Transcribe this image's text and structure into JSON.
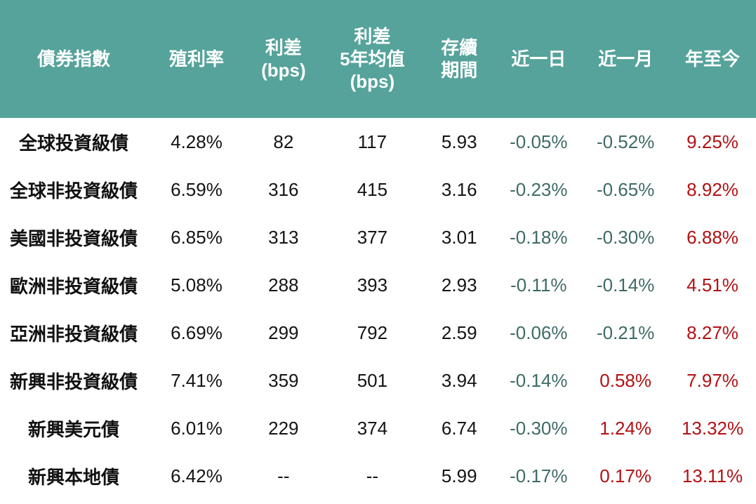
{
  "colors": {
    "header_bg": "#55a39b",
    "header_text": "#ffffff",
    "negative_text": "#3f6b66",
    "positive_text": "#b11113",
    "body_text": "#141414"
  },
  "table": {
    "columns": [
      {
        "key": "name",
        "lines": [
          "債券指數"
        ],
        "width_pct": 19.5
      },
      {
        "key": "yield",
        "lines": [
          "殖利率"
        ],
        "width_pct": 13.0
      },
      {
        "key": "spread",
        "lines": [
          "利差",
          "(bps)"
        ],
        "width_pct": 10.0
      },
      {
        "key": "spread5y",
        "lines": [
          "利差",
          "5年均值",
          "(bps)"
        ],
        "width_pct": 13.5
      },
      {
        "key": "duration",
        "lines": [
          "存續",
          "期間"
        ],
        "width_pct": 9.5
      },
      {
        "key": "d1",
        "lines": [
          "近一日"
        ],
        "width_pct": 11.5
      },
      {
        "key": "m1",
        "lines": [
          "近一月"
        ],
        "width_pct": 11.5
      },
      {
        "key": "ytd",
        "lines": [
          "年至今"
        ],
        "width_pct": 11.5
      }
    ],
    "signed_columns": [
      "d1",
      "m1",
      "ytd"
    ],
    "rows": [
      {
        "name": "全球投資級債",
        "yield": "4.28%",
        "spread": "82",
        "spread5y": "117",
        "duration": "5.93",
        "d1": "-0.05%",
        "m1": "-0.52%",
        "ytd": "9.25%"
      },
      {
        "name": "全球非投資級債",
        "yield": "6.59%",
        "spread": "316",
        "spread5y": "415",
        "duration": "3.16",
        "d1": "-0.23%",
        "m1": "-0.65%",
        "ytd": "8.92%"
      },
      {
        "name": "美國非投資級債",
        "yield": "6.85%",
        "spread": "313",
        "spread5y": "377",
        "duration": "3.01",
        "d1": "-0.18%",
        "m1": "-0.30%",
        "ytd": "6.88%"
      },
      {
        "name": "歐洲非投資級債",
        "yield": "5.08%",
        "spread": "288",
        "spread5y": "393",
        "duration": "2.93",
        "d1": "-0.11%",
        "m1": "-0.14%",
        "ytd": "4.51%"
      },
      {
        "name": "亞洲非投資級債",
        "yield": "6.69%",
        "spread": "299",
        "spread5y": "792",
        "duration": "2.59",
        "d1": "-0.06%",
        "m1": "-0.21%",
        "ytd": "8.27%"
      },
      {
        "name": "新興非投資級債",
        "yield": "7.41%",
        "spread": "359",
        "spread5y": "501",
        "duration": "3.94",
        "d1": "-0.14%",
        "m1": "0.58%",
        "ytd": "7.97%"
      },
      {
        "name": "新興美元債",
        "yield": "6.01%",
        "spread": "229",
        "spread5y": "374",
        "duration": "6.74",
        "d1": "-0.30%",
        "m1": "1.24%",
        "ytd": "13.32%"
      },
      {
        "name": "新興本地債",
        "yield": "6.42%",
        "spread": "--",
        "spread5y": "--",
        "duration": "5.99",
        "d1": "-0.17%",
        "m1": "0.17%",
        "ytd": "13.11%"
      }
    ]
  }
}
